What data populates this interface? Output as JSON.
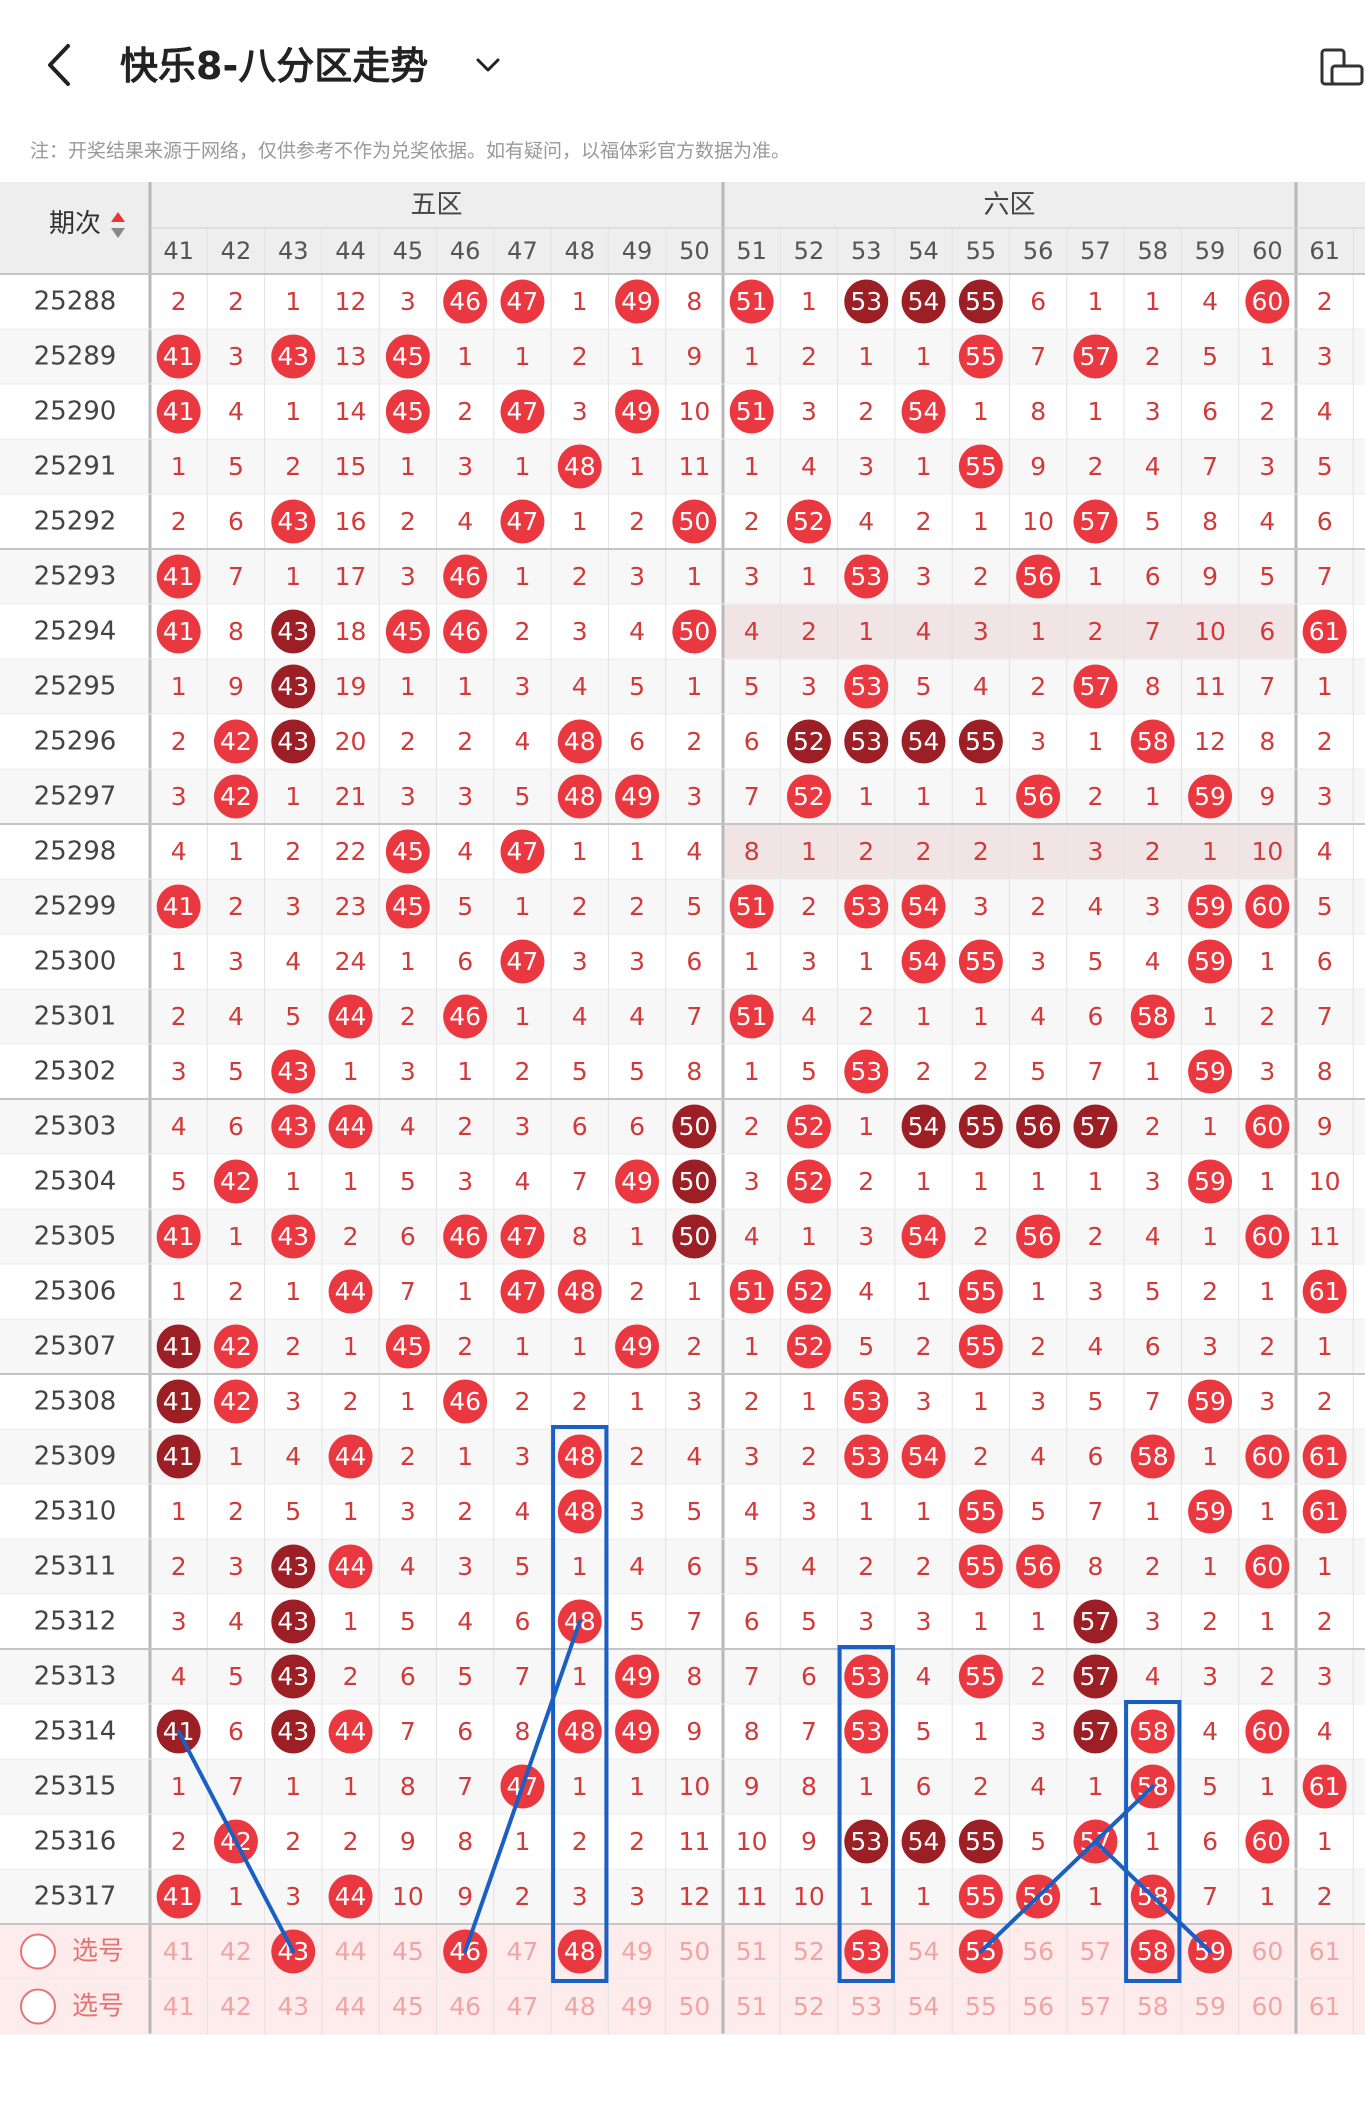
{
  "header": {
    "back_icon": "chevron-left-icon",
    "title": "快乐8-八分区走势",
    "dropdown_icon": "chevron-down-icon",
    "device_icon": "phone-landscape-icon"
  },
  "note": "注：开奖结果来源于网络，仅供参考不作为兑奖依据。如有疑问，以福体彩官方数据为准。",
  "table": {
    "period_header": "期次",
    "sort_icon": "sort-up-down-icon",
    "zones": [
      {
        "label": "五区",
        "numbers": [
          "41",
          "42",
          "43",
          "44",
          "45",
          "46",
          "47",
          "48",
          "49",
          "50"
        ]
      },
      {
        "label": "六区",
        "numbers": [
          "51",
          "52",
          "53",
          "54",
          "55",
          "56",
          "57",
          "58",
          "59",
          "60"
        ]
      },
      {
        "label": "",
        "numbers": [
          "61"
        ]
      }
    ],
    "rows": [
      {
        "period": "25288",
        "cells": [
          "2",
          "2",
          "1",
          "12",
          "3",
          "46",
          "47",
          "1",
          "49",
          "8",
          "51",
          "1",
          "53",
          "54",
          "55",
          "6",
          "1",
          "1",
          "4",
          "60",
          "2"
        ]
      },
      {
        "period": "25289",
        "cells": [
          "41",
          "3",
          "43",
          "13",
          "45",
          "1",
          "1",
          "2",
          "1",
          "9",
          "1",
          "2",
          "1",
          "1",
          "55",
          "7",
          "57",
          "2",
          "5",
          "1",
          "3"
        ]
      },
      {
        "period": "25290",
        "cells": [
          "41",
          "4",
          "1",
          "14",
          "45",
          "2",
          "47",
          "3",
          "49",
          "10",
          "51",
          "3",
          "2",
          "54",
          "1",
          "8",
          "1",
          "3",
          "6",
          "2",
          "4"
        ]
      },
      {
        "period": "25291",
        "cells": [
          "1",
          "5",
          "2",
          "15",
          "1",
          "3",
          "1",
          "48",
          "1",
          "11",
          "1",
          "4",
          "3",
          "1",
          "55",
          "9",
          "2",
          "4",
          "7",
          "3",
          "5"
        ]
      },
      {
        "period": "25292",
        "cells": [
          "2",
          "6",
          "43",
          "16",
          "2",
          "4",
          "47",
          "1",
          "2",
          "50",
          "2",
          "52",
          "4",
          "2",
          "1",
          "10",
          "57",
          "5",
          "8",
          "4",
          "6"
        ]
      },
      {
        "period": "25293",
        "cells": [
          "41",
          "7",
          "1",
          "17",
          "3",
          "46",
          "1",
          "2",
          "3",
          "1",
          "3",
          "1",
          "53",
          "3",
          "2",
          "56",
          "1",
          "6",
          "9",
          "5",
          "7"
        ]
      },
      {
        "period": "25294",
        "cells": [
          "41",
          "8",
          "43",
          "18",
          "45",
          "46",
          "2",
          "3",
          "4",
          "50",
          "4",
          "2",
          "1",
          "4",
          "3",
          "1",
          "2",
          "7",
          "10",
          "6",
          "61"
        ]
      },
      {
        "period": "25295",
        "cells": [
          "1",
          "9",
          "43",
          "19",
          "1",
          "1",
          "3",
          "4",
          "5",
          "1",
          "5",
          "3",
          "53",
          "5",
          "4",
          "2",
          "57",
          "8",
          "11",
          "7",
          "1"
        ]
      },
      {
        "period": "25296",
        "cells": [
          "2",
          "42",
          "43",
          "20",
          "2",
          "2",
          "4",
          "48",
          "6",
          "2",
          "6",
          "52",
          "53",
          "54",
          "55",
          "3",
          "1",
          "58",
          "12",
          "8",
          "2"
        ]
      },
      {
        "period": "25297",
        "cells": [
          "3",
          "42",
          "1",
          "21",
          "3",
          "3",
          "5",
          "48",
          "49",
          "3",
          "7",
          "52",
          "1",
          "1",
          "1",
          "56",
          "2",
          "1",
          "59",
          "9",
          "3"
        ]
      },
      {
        "period": "25298",
        "cells": [
          "4",
          "1",
          "2",
          "22",
          "45",
          "4",
          "47",
          "1",
          "1",
          "4",
          "8",
          "1",
          "2",
          "2",
          "2",
          "1",
          "3",
          "2",
          "1",
          "10",
          "4"
        ]
      },
      {
        "period": "25299",
        "cells": [
          "41",
          "2",
          "3",
          "23",
          "45",
          "5",
          "1",
          "2",
          "2",
          "5",
          "51",
          "2",
          "53",
          "54",
          "3",
          "2",
          "4",
          "3",
          "59",
          "60",
          "5"
        ]
      },
      {
        "period": "25300",
        "cells": [
          "1",
          "3",
          "4",
          "24",
          "1",
          "6",
          "47",
          "3",
          "3",
          "6",
          "1",
          "3",
          "1",
          "54",
          "55",
          "3",
          "5",
          "4",
          "59",
          "1",
          "6"
        ]
      },
      {
        "period": "25301",
        "cells": [
          "2",
          "4",
          "5",
          "44",
          "2",
          "46",
          "1",
          "4",
          "4",
          "7",
          "51",
          "4",
          "2",
          "1",
          "1",
          "4",
          "6",
          "58",
          "1",
          "2",
          "7"
        ]
      },
      {
        "period": "25302",
        "cells": [
          "3",
          "5",
          "43",
          "1",
          "3",
          "1",
          "2",
          "5",
          "5",
          "8",
          "1",
          "5",
          "53",
          "2",
          "2",
          "5",
          "7",
          "1",
          "59",
          "3",
          "8"
        ]
      },
      {
        "period": "25303",
        "cells": [
          "4",
          "6",
          "43",
          "44",
          "4",
          "2",
          "3",
          "6",
          "6",
          "50",
          "2",
          "52",
          "1",
          "54",
          "55",
          "56",
          "57",
          "2",
          "1",
          "60",
          "9"
        ]
      },
      {
        "period": "25304",
        "cells": [
          "5",
          "42",
          "1",
          "1",
          "5",
          "3",
          "4",
          "7",
          "49",
          "50",
          "3",
          "52",
          "2",
          "1",
          "1",
          "1",
          "1",
          "3",
          "59",
          "1",
          "10"
        ]
      },
      {
        "period": "25305",
        "cells": [
          "41",
          "1",
          "43",
          "2",
          "6",
          "46",
          "47",
          "8",
          "1",
          "50",
          "4",
          "1",
          "3",
          "54",
          "2",
          "56",
          "2",
          "4",
          "1",
          "60",
          "11"
        ]
      },
      {
        "period": "25306",
        "cells": [
          "1",
          "2",
          "1",
          "44",
          "7",
          "1",
          "47",
          "48",
          "2",
          "1",
          "51",
          "52",
          "4",
          "1",
          "55",
          "1",
          "3",
          "5",
          "2",
          "1",
          "61"
        ]
      },
      {
        "period": "25307",
        "cells": [
          "41",
          "42",
          "2",
          "1",
          "45",
          "2",
          "1",
          "1",
          "49",
          "2",
          "1",
          "52",
          "5",
          "2",
          "55",
          "2",
          "4",
          "6",
          "3",
          "2",
          "1"
        ]
      },
      {
        "period": "25308",
        "cells": [
          "41",
          "42",
          "3",
          "2",
          "1",
          "46",
          "2",
          "2",
          "1",
          "3",
          "2",
          "1",
          "53",
          "3",
          "1",
          "3",
          "5",
          "7",
          "59",
          "3",
          "2"
        ]
      },
      {
        "period": "25309",
        "cells": [
          "41",
          "1",
          "4",
          "44",
          "2",
          "1",
          "3",
          "48",
          "2",
          "4",
          "3",
          "2",
          "53",
          "54",
          "2",
          "4",
          "6",
          "58",
          "1",
          "60",
          "61"
        ]
      },
      {
        "period": "25310",
        "cells": [
          "1",
          "2",
          "5",
          "1",
          "3",
          "2",
          "4",
          "48",
          "3",
          "5",
          "4",
          "3",
          "1",
          "1",
          "55",
          "5",
          "7",
          "1",
          "59",
          "1",
          "61"
        ]
      },
      {
        "period": "25311",
        "cells": [
          "2",
          "3",
          "43",
          "44",
          "4",
          "3",
          "5",
          "1",
          "4",
          "6",
          "5",
          "4",
          "2",
          "2",
          "55",
          "56",
          "8",
          "2",
          "1",
          "60",
          "1"
        ]
      },
      {
        "period": "25312",
        "cells": [
          "3",
          "4",
          "43",
          "1",
          "5",
          "4",
          "6",
          "48",
          "5",
          "7",
          "6",
          "5",
          "3",
          "3",
          "1",
          "1",
          "57",
          "3",
          "2",
          "1",
          "2"
        ]
      },
      {
        "period": "25313",
        "cells": [
          "4",
          "5",
          "43",
          "2",
          "6",
          "5",
          "7",
          "1",
          "49",
          "8",
          "7",
          "6",
          "53",
          "4",
          "55",
          "2",
          "57",
          "4",
          "3",
          "2",
          "3"
        ]
      },
      {
        "period": "25314",
        "cells": [
          "41",
          "6",
          "43",
          "44",
          "7",
          "6",
          "8",
          "48",
          "49",
          "9",
          "8",
          "7",
          "53",
          "5",
          "1",
          "3",
          "57",
          "58",
          "4",
          "60",
          "4"
        ]
      },
      {
        "period": "25315",
        "cells": [
          "1",
          "7",
          "1",
          "1",
          "8",
          "7",
          "47",
          "1",
          "1",
          "10",
          "9",
          "8",
          "1",
          "6",
          "2",
          "4",
          "1",
          "58",
          "5",
          "1",
          "61"
        ]
      },
      {
        "period": "25316",
        "cells": [
          "2",
          "42",
          "2",
          "2",
          "9",
          "8",
          "1",
          "2",
          "2",
          "11",
          "10",
          "9",
          "53",
          "54",
          "55",
          "5",
          "57",
          "1",
          "6",
          "60",
          "1"
        ]
      },
      {
        "period": "25317",
        "cells": [
          "41",
          "1",
          "3",
          "44",
          "10",
          "9",
          "2",
          "3",
          "3",
          "12",
          "11",
          "10",
          "1",
          "1",
          "55",
          "56",
          "1",
          "58",
          "7",
          "1",
          "2"
        ]
      }
    ],
    "dark_balls": [
      [
        "25288",
        "53"
      ],
      [
        "25288",
        "54"
      ],
      [
        "25288",
        "55"
      ],
      [
        "25294",
        "43"
      ],
      [
        "25295",
        "43"
      ],
      [
        "25296",
        "43"
      ],
      [
        "25296",
        "52"
      ],
      [
        "25296",
        "53"
      ],
      [
        "25296",
        "54"
      ],
      [
        "25296",
        "55"
      ],
      [
        "25303",
        "50"
      ],
      [
        "25303",
        "54"
      ],
      [
        "25303",
        "55"
      ],
      [
        "25303",
        "56"
      ],
      [
        "25303",
        "57"
      ],
      [
        "25304",
        "50"
      ],
      [
        "25305",
        "50"
      ],
      [
        "25307",
        "41"
      ],
      [
        "25308",
        "41"
      ],
      [
        "25309",
        "41"
      ],
      [
        "25311",
        "43"
      ],
      [
        "25312",
        "43"
      ],
      [
        "25312",
        "57"
      ],
      [
        "25313",
        "43"
      ],
      [
        "25313",
        "57"
      ],
      [
        "25314",
        "41"
      ],
      [
        "25314",
        "43"
      ],
      [
        "25314",
        "57"
      ],
      [
        "25316",
        "53"
      ],
      [
        "25316",
        "54"
      ],
      [
        "25316",
        "55"
      ]
    ],
    "shaded_rows": [
      "25294",
      "25298"
    ],
    "select_rows": [
      {
        "label": "选号",
        "selected": [
          "43",
          "46",
          "48",
          "53",
          "55",
          "58",
          "59"
        ],
        "cells": [
          "41",
          "42",
          "43",
          "44",
          "45",
          "46",
          "47",
          "48",
          "49",
          "50",
          "51",
          "52",
          "53",
          "54",
          "55",
          "56",
          "57",
          "58",
          "59",
          "60",
          "61"
        ]
      },
      {
        "label": "选号",
        "selected": [],
        "cells": [
          "41",
          "42",
          "43",
          "44",
          "45",
          "46",
          "47",
          "48",
          "49",
          "50",
          "51",
          "52",
          "53",
          "54",
          "55",
          "56",
          "57",
          "58",
          "59",
          "60",
          "61"
        ]
      }
    ],
    "footer_zones": [
      "五区",
      "六区"
    ],
    "footer_left": "-"
  },
  "annotations": {
    "boxes": [
      {
        "number": "48",
        "from": "25309",
        "to": "选号"
      },
      {
        "number": "53",
        "from": "25313",
        "to": "选号"
      },
      {
        "number": "58",
        "from": "25314",
        "to": "选号"
      }
    ],
    "lines": [
      {
        "from": [
          "25314",
          "41"
        ],
        "to": [
          "选号",
          "43"
        ]
      },
      {
        "from": [
          "选号",
          "46"
        ],
        "to": [
          "25312",
          "48"
        ]
      },
      {
        "from": [
          "选号",
          "55"
        ],
        "to": [
          "25315",
          "58"
        ]
      },
      {
        "from": [
          "25316",
          "57"
        ],
        "to": [
          "选号",
          "59"
        ]
      }
    ]
  },
  "colors": {
    "ball_red": "#e9383f",
    "ball_dark": "#9b1f24",
    "miss_text": "#d23a3a",
    "header_bg": "#eeeeee",
    "select_bg": "#fdeceb",
    "shade_bg": "#f1e4e4",
    "annotation_blue": "#1a5fc4"
  }
}
